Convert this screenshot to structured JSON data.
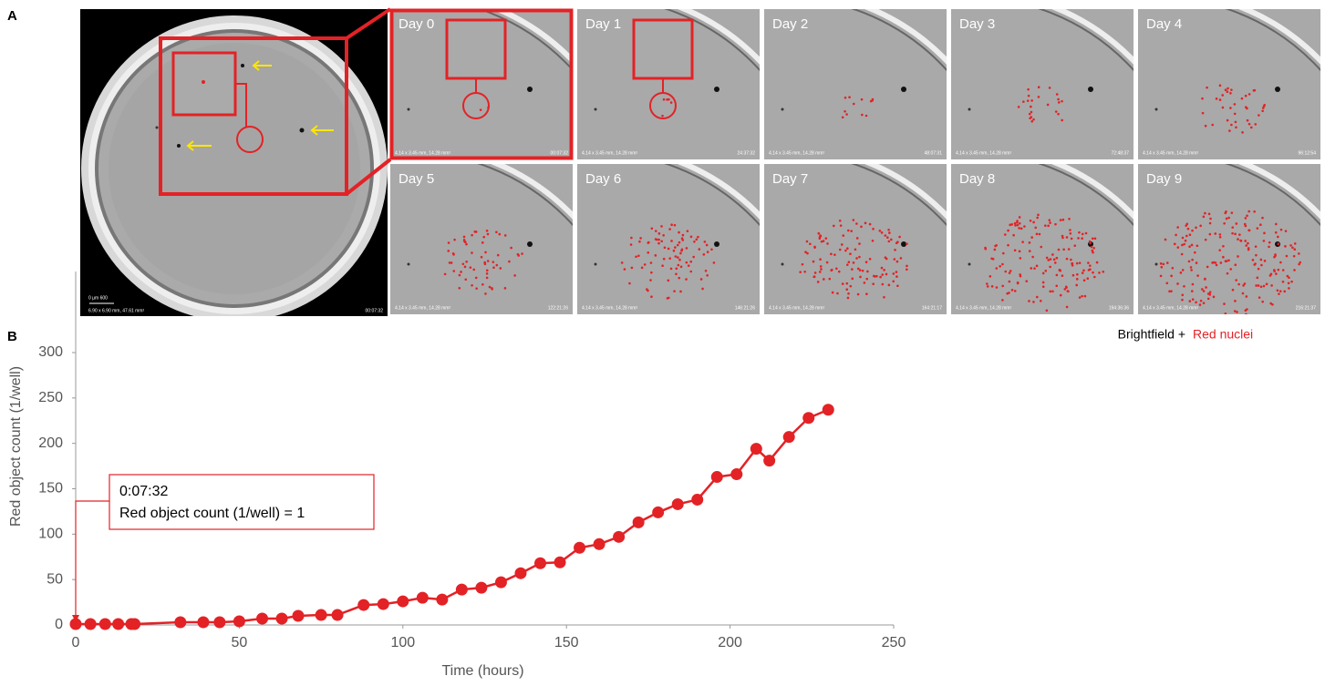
{
  "panel_a": {
    "label": "A",
    "overview": {
      "scale_label": "0    µm    600",
      "size_label": "6.90 x 6.90 mm, 47.61 mm²",
      "timestamp": "00:07:32"
    },
    "tiles": [
      {
        "day": "Day 0",
        "size_label": "4.14 x 3.45 mm, 14.28 mm²",
        "timestamp": "00:07:32"
      },
      {
        "day": "Day 1",
        "size_label": "4.14 x 3.45 mm, 14.28 mm²",
        "timestamp": "24:37:32"
      },
      {
        "day": "Day 2",
        "size_label": "4.14 x 3.45 mm, 14.28 mm²",
        "timestamp": "48:07:31"
      },
      {
        "day": "Day 3",
        "size_label": "4.14 x 3.45 mm, 14.28 mm²",
        "timestamp": "72:48:37"
      },
      {
        "day": "Day 4",
        "size_label": "4.14 x 3.45 mm, 14.28 mm²",
        "timestamp": "96:12:54"
      },
      {
        "day": "Day 5",
        "size_label": "4.14 x 3.45 mm, 14.28 mm²",
        "timestamp": "122:21:26"
      },
      {
        "day": "Day 6",
        "size_label": "4.14 x 3.45 mm, 14.28 mm²",
        "timestamp": "146:21:26"
      },
      {
        "day": "Day 7",
        "size_label": "4.14 x 3.45 mm, 14.28 mm²",
        "timestamp": "164:21:17"
      },
      {
        "day": "Day 8",
        "size_label": "4.14 x 3.45 mm, 14.28 mm²",
        "timestamp": "194:36:36"
      },
      {
        "day": "Day 9",
        "size_label": "4.14 x 3.45 mm, 14.28 mm²",
        "timestamp": "216:21:37"
      }
    ],
    "legend": {
      "text": "Brightfield +",
      "highlight": "Red nuclei"
    }
  },
  "chart_data": {
    "type": "line",
    "panel_label": "B",
    "x_label": "Time (hours)",
    "y_label": "Red object count (1/well)",
    "x": [
      0,
      4.5,
      9,
      13,
      17,
      18,
      32,
      39,
      44,
      50,
      57,
      63,
      68,
      75,
      80,
      88,
      94,
      100,
      106,
      112,
      118,
      124,
      130,
      136,
      142,
      148,
      154,
      160,
      166,
      172,
      178,
      184,
      190,
      196,
      202,
      208,
      212,
      218,
      224,
      230
    ],
    "series": [
      {
        "name": "Red object count (1/well)",
        "color": "#e32226",
        "values": [
          1,
          1,
          1,
          1,
          1,
          1,
          3,
          3,
          3,
          4,
          7,
          7,
          10,
          11,
          11,
          22,
          23,
          26,
          30,
          28,
          39,
          41,
          47,
          57,
          68,
          69,
          85,
          89,
          97,
          113,
          124,
          133,
          138,
          163,
          166,
          194,
          181,
          207,
          228,
          237
        ]
      }
    ],
    "xlim": [
      0,
      250
    ],
    "xticks": [
      0,
      50,
      100,
      150,
      200,
      250
    ],
    "ylim": [
      0,
      300
    ],
    "yticks": [
      0,
      50,
      100,
      150,
      200,
      250,
      300
    ],
    "annotation": {
      "line1": "0:07:32",
      "line2": "Red object count (1/well) = 1"
    }
  }
}
